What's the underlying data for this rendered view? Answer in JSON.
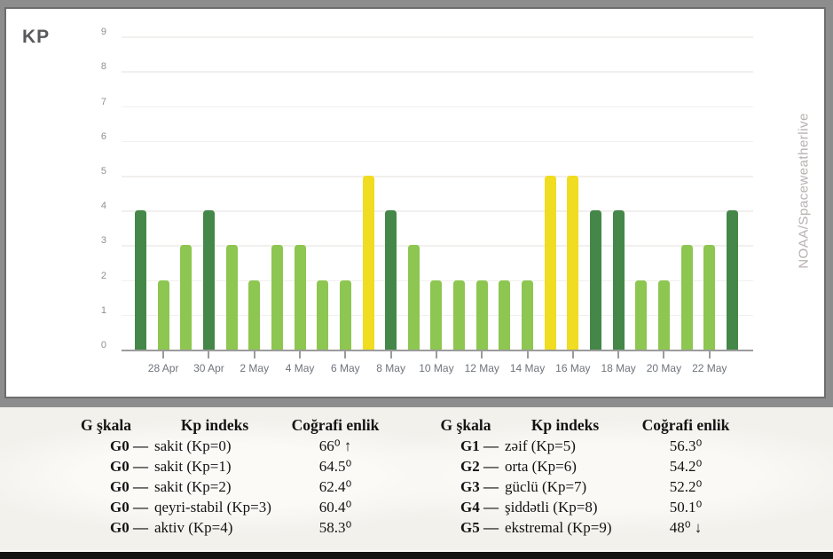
{
  "chart_data": {
    "type": "bar",
    "title": "KP",
    "watermark": "NOAA/Spaceweatherlive",
    "xlabel": "",
    "ylabel": "",
    "ylim": [
      0,
      9
    ],
    "yticks": [
      0,
      1,
      2,
      3,
      4,
      5,
      6,
      7,
      8,
      9
    ],
    "grid": true,
    "legend_position": "none",
    "x": [
      "27 Apr",
      "28 Apr",
      "29 Apr",
      "30 Apr",
      "1 May",
      "2 May",
      "3 May",
      "4 May",
      "5 May",
      "6 May",
      "7 May",
      "8 May",
      "9 May",
      "10 May",
      "11 May",
      "12 May",
      "13 May",
      "14 May",
      "15 May",
      "16 May",
      "17 May",
      "18 May",
      "19 May",
      "20 May",
      "21 May",
      "22 May",
      "23 May"
    ],
    "values": [
      4,
      2,
      3,
      4,
      3,
      2,
      3,
      3,
      2,
      2,
      5,
      4,
      3,
      2,
      2,
      2,
      2,
      2,
      5,
      5,
      4,
      4,
      2,
      2,
      3,
      3,
      4
    ],
    "xtick_indices": [
      1,
      3,
      5,
      7,
      9,
      11,
      13,
      15,
      17,
      19,
      21,
      23,
      25
    ],
    "xtick_labels": [
      "28 Apr",
      "30 Apr",
      "2 May",
      "4 May",
      "6 May",
      "8 May",
      "10 May",
      "12 May",
      "14 May",
      "16 May",
      "18 May",
      "20 May",
      "22 May"
    ],
    "colors": {
      "kp_0_3": "#8dc650",
      "kp_4": "#448748",
      "kp_5_plus": "#f0dc20",
      "grid_line": "#f1f0ee",
      "axis_line": "#9b9b9b",
      "y_label": "#8f9091",
      "x_label": "#6f747c",
      "title": "#58595b",
      "watermark": "#b9b0b0"
    }
  },
  "legend_tables": {
    "left": {
      "headers": [
        "G şkala",
        "Kp indeks",
        "Coğrafi enlik"
      ],
      "rows": [
        [
          "G0 —",
          "sakit (Kp=0)",
          "66⁰ ↑"
        ],
        [
          "G0 —",
          "sakit (Kp=1)",
          "64.5⁰"
        ],
        [
          "G0 —",
          "sakit (Kp=2)",
          "62.4⁰"
        ],
        [
          "G0 —",
          "qeyri-stabil (Kp=3)",
          "60.4⁰"
        ],
        [
          "G0 —",
          "aktiv (Kp=4)",
          "58.3⁰"
        ]
      ]
    },
    "right": {
      "headers": [
        "G şkala",
        "Kp indeks",
        "Coğrafi enlik"
      ],
      "rows": [
        [
          "G1 —",
          "zəif (Kp=5)",
          "56.3⁰"
        ],
        [
          "G2 —",
          "orta (Kp=6)",
          "54.2⁰"
        ],
        [
          "G3 —",
          "güclü (Kp=7)",
          "52.2⁰"
        ],
        [
          "G4 —",
          "şiddətli (Kp=8)",
          "50.1⁰"
        ],
        [
          "G5 —",
          "ekstremal (Kp=9)",
          "48⁰ ↓"
        ]
      ]
    }
  }
}
